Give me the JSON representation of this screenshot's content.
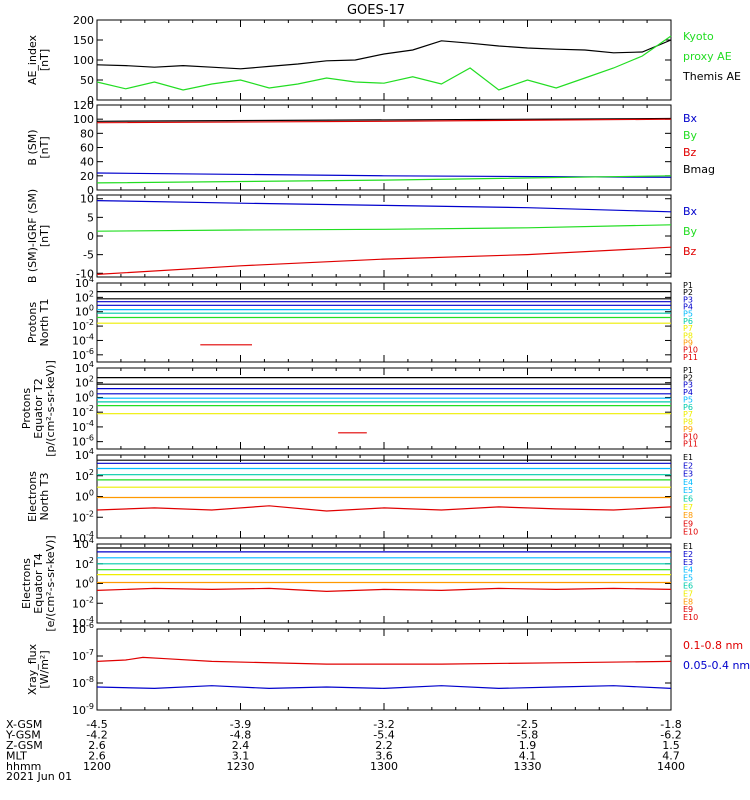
{
  "title": "GOES-17",
  "colors": {
    "black": "#000000",
    "red": "#e00000",
    "green": "#22dd22",
    "blue": "#0000cc",
    "cyan": "#00bbff",
    "teal": "#00ccaa",
    "yellow": "#eeee00",
    "orange": "#ff9900"
  },
  "chart_data": [
    {
      "type": "line",
      "panel": "ae_index",
      "ylabel": [
        "AE_index",
        "[nT]"
      ],
      "ylim": [
        0,
        200
      ],
      "yticks": [
        0,
        50,
        100,
        150,
        200
      ],
      "x": [
        "1200",
        "1400"
      ],
      "legend": [
        {
          "label": "Kyoto",
          "color": "green"
        },
        {
          "label": "proxy AE",
          "color": "green"
        },
        {
          "label": "Themis AE",
          "color": "black"
        }
      ],
      "series": [
        {
          "name": "Themis AE",
          "color": "black",
          "x": [
            0,
            0.05,
            0.1,
            0.15,
            0.2,
            0.25,
            0.3,
            0.35,
            0.4,
            0.45,
            0.5,
            0.55,
            0.6,
            0.65,
            0.7,
            0.75,
            0.8,
            0.85,
            0.9,
            0.95,
            1
          ],
          "y": [
            88,
            86,
            82,
            86,
            82,
            78,
            84,
            90,
            98,
            100,
            115,
            125,
            148,
            142,
            135,
            130,
            127,
            125,
            118,
            120,
            150
          ]
        },
        {
          "name": "Kyoto proxy AE",
          "color": "green",
          "x": [
            0,
            0.05,
            0.1,
            0.15,
            0.2,
            0.25,
            0.3,
            0.35,
            0.4,
            0.45,
            0.5,
            0.55,
            0.6,
            0.65,
            0.7,
            0.75,
            0.8,
            0.85,
            0.9,
            0.95,
            1
          ],
          "y": [
            45,
            28,
            45,
            25,
            40,
            50,
            30,
            40,
            55,
            45,
            42,
            58,
            40,
            80,
            25,
            50,
            30,
            55,
            80,
            110,
            160
          ]
        }
      ]
    },
    {
      "type": "line",
      "panel": "b_sm",
      "ylabel": [
        "B (SM)",
        "[nT]"
      ],
      "ylim": [
        0,
        120
      ],
      "yticks": [
        0,
        20,
        40,
        60,
        80,
        100,
        120
      ],
      "legend": [
        {
          "label": "Bx",
          "color": "blue"
        },
        {
          "label": "By",
          "color": "green"
        },
        {
          "label": "Bz",
          "color": "red"
        },
        {
          "label": "Bmag",
          "color": "black"
        }
      ],
      "series": [
        {
          "name": "Bmag",
          "color": "black",
          "x": [
            0,
            1
          ],
          "y": [
            97,
            101
          ]
        },
        {
          "name": "Bz",
          "color": "red",
          "x": [
            0,
            0.5,
            1
          ],
          "y": [
            95,
            97,
            100
          ]
        },
        {
          "name": "Bx",
          "color": "blue",
          "x": [
            0,
            0.5,
            1
          ],
          "y": [
            24,
            20,
            18
          ]
        },
        {
          "name": "By",
          "color": "green",
          "x": [
            0,
            0.5,
            1
          ],
          "y": [
            10,
            14,
            20
          ]
        }
      ]
    },
    {
      "type": "line",
      "panel": "b_sm_igrf",
      "ylabel": [
        "B (SM)-IGRF (SM)",
        "[nT]"
      ],
      "ylim": [
        -11,
        11
      ],
      "yticks": [
        -10,
        -5,
        0,
        5,
        10
      ],
      "legend": [
        {
          "label": "Bx",
          "color": "blue"
        },
        {
          "label": "By",
          "color": "green"
        },
        {
          "label": "Bz",
          "color": "red"
        }
      ],
      "series": [
        {
          "name": "Bx",
          "color": "blue",
          "x": [
            0,
            0.25,
            0.5,
            0.75,
            1
          ],
          "y": [
            9.5,
            8.8,
            8.2,
            7.6,
            6.5
          ]
        },
        {
          "name": "By",
          "color": "green",
          "x": [
            0,
            0.25,
            0.5,
            0.75,
            1
          ],
          "y": [
            1.3,
            1.6,
            1.8,
            2.2,
            3.0
          ]
        },
        {
          "name": "Bz",
          "color": "red",
          "x": [
            0,
            0.25,
            0.5,
            0.75,
            1
          ],
          "y": [
            -10.3,
            -8.0,
            -6.2,
            -5.0,
            -3.0
          ]
        }
      ]
    },
    {
      "type": "line",
      "panel": "protons_t1",
      "ylabel": [
        "Protons",
        "North T1"
      ],
      "log": true,
      "ylim": [
        -7,
        4
      ],
      "yticks": [
        4,
        2,
        0,
        -2,
        -4,
        -6
      ],
      "legend": [
        {
          "label": "P1",
          "color": "black"
        },
        {
          "label": "P2",
          "color": "black"
        },
        {
          "label": "P3",
          "color": "blue"
        },
        {
          "label": "P4",
          "color": "blue"
        },
        {
          "label": "P5",
          "color": "cyan"
        },
        {
          "label": "P6",
          "color": "teal"
        },
        {
          "label": "P7",
          "color": "yellow"
        },
        {
          "label": "P8",
          "color": "yellow"
        },
        {
          "label": "P9",
          "color": "orange"
        },
        {
          "label": "P10",
          "color": "red"
        },
        {
          "label": "P11",
          "color": "red"
        }
      ],
      "series": [
        {
          "name": "P1",
          "color": "black",
          "log10": 2.8
        },
        {
          "name": "P2",
          "color": "black",
          "log10": 1.8
        },
        {
          "name": "P3",
          "color": "blue",
          "log10": 1.4
        },
        {
          "name": "P4",
          "color": "blue",
          "log10": 0.9
        },
        {
          "name": "P5",
          "color": "cyan",
          "log10": 0.3
        },
        {
          "name": "P6",
          "color": "teal",
          "log10": -0.2
        },
        {
          "name": "P7",
          "color": "green",
          "log10": -0.8
        },
        {
          "name": "P8",
          "color": "yellow",
          "log10": -1.6
        },
        {
          "name": "P10",
          "color": "red",
          "log10": -4.6,
          "x": [
            0.18,
            0.27
          ]
        }
      ]
    },
    {
      "type": "line",
      "panel": "protons_t2",
      "ylabel": [
        "Protons",
        "Equator T2",
        "[p/(cm²-s-sr-keV)]"
      ],
      "log": true,
      "ylim": [
        -7,
        4
      ],
      "yticks": [
        4,
        2,
        0,
        -2,
        -4,
        -6
      ],
      "legend": [
        {
          "label": "P1",
          "color": "black"
        },
        {
          "label": "P2",
          "color": "black"
        },
        {
          "label": "P3",
          "color": "blue"
        },
        {
          "label": "P4",
          "color": "blue"
        },
        {
          "label": "P5",
          "color": "cyan"
        },
        {
          "label": "P6",
          "color": "teal"
        },
        {
          "label": "P7",
          "color": "yellow"
        },
        {
          "label": "P8",
          "color": "yellow"
        },
        {
          "label": "P9",
          "color": "orange"
        },
        {
          "label": "P10",
          "color": "red"
        },
        {
          "label": "P11",
          "color": "red"
        }
      ],
      "series": [
        {
          "name": "P1",
          "color": "black",
          "log10": 2.7
        },
        {
          "name": "P2",
          "color": "black",
          "log10": 1.8
        },
        {
          "name": "P3",
          "color": "blue",
          "log10": 1.2
        },
        {
          "name": "P4",
          "color": "blue",
          "log10": 0.5
        },
        {
          "name": "P5",
          "color": "cyan",
          "log10": -0.1
        },
        {
          "name": "P6",
          "color": "teal",
          "log10": -0.6
        },
        {
          "name": "P7",
          "color": "green",
          "log10": -1.1
        },
        {
          "name": "P8",
          "color": "yellow",
          "log10": -2.2
        },
        {
          "name": "P10",
          "color": "red",
          "log10": -4.8,
          "x": [
            0.42,
            0.47
          ]
        }
      ]
    },
    {
      "type": "line",
      "panel": "electrons_t3",
      "ylabel": [
        "Electrons",
        "North T3"
      ],
      "log": true,
      "ylim": [
        -4,
        4
      ],
      "yticks": [
        4,
        2,
        0,
        -2,
        -4
      ],
      "legend": [
        {
          "label": "E1",
          "color": "black"
        },
        {
          "label": "E2",
          "color": "blue"
        },
        {
          "label": "E3",
          "color": "blue"
        },
        {
          "label": "E4",
          "color": "cyan"
        },
        {
          "label": "E5",
          "color": "cyan"
        },
        {
          "label": "E6",
          "color": "teal"
        },
        {
          "label": "E7",
          "color": "yellow"
        },
        {
          "label": "E8",
          "color": "orange"
        },
        {
          "label": "E9",
          "color": "red"
        },
        {
          "label": "E10",
          "color": "red"
        }
      ],
      "series": [
        {
          "name": "E1",
          "color": "black",
          "log10": 3.5
        },
        {
          "name": "E2",
          "color": "blue",
          "log10": 3.2
        },
        {
          "name": "E3",
          "color": "cyan",
          "log10": 2.7
        },
        {
          "name": "E4",
          "color": "teal",
          "log10": 2.1
        },
        {
          "name": "E5",
          "color": "green",
          "log10": 1.6
        },
        {
          "name": "E6",
          "color": "yellow",
          "log10": 0.9
        },
        {
          "name": "E7",
          "color": "orange",
          "log10": -0.1
        },
        {
          "name": "E8",
          "color": "red",
          "x": [
            0,
            0.1,
            0.2,
            0.3,
            0.4,
            0.5,
            0.6,
            0.7,
            0.8,
            0.9,
            1
          ],
          "y": [
            -1.3,
            -1.1,
            -1.3,
            -0.9,
            -1.4,
            -1.1,
            -1.3,
            -1.0,
            -1.2,
            -1.3,
            -1.0
          ]
        }
      ]
    },
    {
      "type": "line",
      "panel": "electrons_t4",
      "ylabel": [
        "Electrons",
        "Equator T4",
        "[e/(cm²-s-sr-keV)]"
      ],
      "log": true,
      "ylim": [
        -4,
        4
      ],
      "yticks": [
        4,
        2,
        0,
        -2,
        -4
      ],
      "legend": [
        {
          "label": "E1",
          "color": "black"
        },
        {
          "label": "E2",
          "color": "blue"
        },
        {
          "label": "E3",
          "color": "blue"
        },
        {
          "label": "E4",
          "color": "cyan"
        },
        {
          "label": "E5",
          "color": "cyan"
        },
        {
          "label": "E6",
          "color": "teal"
        },
        {
          "label": "E7",
          "color": "yellow"
        },
        {
          "label": "E8",
          "color": "orange"
        },
        {
          "label": "E9",
          "color": "red"
        },
        {
          "label": "E10",
          "color": "red"
        }
      ],
      "series": [
        {
          "name": "E1",
          "color": "black",
          "log10": 3.6
        },
        {
          "name": "E2",
          "color": "blue",
          "log10": 3.2
        },
        {
          "name": "E3",
          "color": "cyan",
          "log10": 2.6
        },
        {
          "name": "E4",
          "color": "teal",
          "log10": 2.0
        },
        {
          "name": "E5",
          "color": "green",
          "log10": 1.4
        },
        {
          "name": "E6",
          "color": "yellow",
          "log10": 0.9
        },
        {
          "name": "E7",
          "color": "orange",
          "log10": 0.1
        },
        {
          "name": "E8",
          "color": "red",
          "x": [
            0,
            0.1,
            0.2,
            0.3,
            0.4,
            0.5,
            0.6,
            0.7,
            0.8,
            0.9,
            1
          ],
          "y": [
            -0.7,
            -0.5,
            -0.6,
            -0.5,
            -0.8,
            -0.6,
            -0.7,
            -0.5,
            -0.6,
            -0.5,
            -0.6
          ]
        }
      ]
    },
    {
      "type": "line",
      "panel": "xray",
      "ylabel": [
        "Xray_flux",
        "[W/m²]"
      ],
      "log": true,
      "ylim": [
        -9,
        -6
      ],
      "yticks": [
        -6,
        -7,
        -8,
        -9
      ],
      "legend": [
        {
          "label": "0.1-0.8 nm",
          "color": "red"
        },
        {
          "label": "0.05-0.4 nm",
          "color": "blue"
        }
      ],
      "series": [
        {
          "name": "0.1-0.8 nm",
          "color": "red",
          "x": [
            0,
            0.05,
            0.08,
            0.12,
            0.2,
            0.4,
            0.6,
            0.8,
            1
          ],
          "y": [
            -7.2,
            -7.15,
            -7.05,
            -7.1,
            -7.2,
            -7.3,
            -7.3,
            -7.25,
            -7.2
          ]
        },
        {
          "name": "0.05-0.4 nm",
          "color": "blue",
          "x": [
            0,
            0.1,
            0.2,
            0.3,
            0.4,
            0.5,
            0.6,
            0.7,
            0.8,
            0.9,
            1
          ],
          "y": [
            -8.15,
            -8.2,
            -8.1,
            -8.2,
            -8.15,
            -8.2,
            -8.1,
            -8.2,
            -8.15,
            -8.1,
            -8.2
          ]
        }
      ]
    }
  ],
  "ephemeris": {
    "rows": [
      {
        "label": "X-GSM",
        "values": [
          "-4.5",
          "-3.9",
          "-3.2",
          "-2.5",
          "-1.8"
        ]
      },
      {
        "label": "Y-GSM",
        "values": [
          "-4.2",
          "-4.8",
          "-5.4",
          "-5.8",
          "-6.2"
        ]
      },
      {
        "label": "Z-GSM",
        "values": [
          "2.6",
          "2.4",
          "2.2",
          "1.9",
          "1.5"
        ]
      },
      {
        "label": "MLT",
        "values": [
          "2.6",
          "3.1",
          "3.6",
          "4.1",
          "4.7"
        ]
      },
      {
        "label": "hhmm",
        "values": [
          "1200",
          "1230",
          "1300",
          "1330",
          "1400"
        ]
      }
    ],
    "date": "2021 Jun 01"
  }
}
